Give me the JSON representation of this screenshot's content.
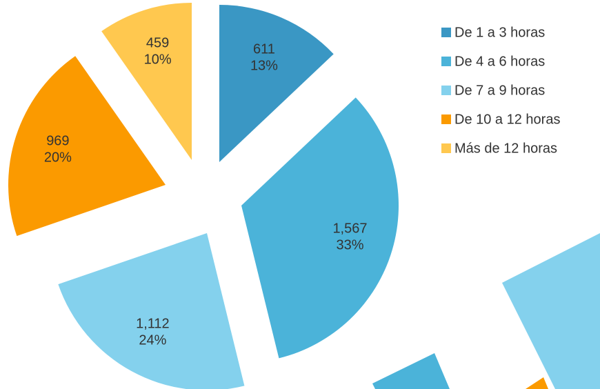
{
  "chart_data": {
    "type": "pie",
    "categories": [
      "De 1 a 3 horas",
      "De 4 a 6 horas",
      "De 7 a 9 horas",
      "De 10 a 12 horas",
      "Más de 12 horas"
    ],
    "values": [
      611,
      1567,
      1112,
      969,
      459
    ],
    "value_labels": [
      "611",
      "1,567",
      "1,112",
      "969",
      "459"
    ],
    "percentages": [
      13,
      33,
      24,
      20,
      10
    ],
    "percentage_labels": [
      "13%",
      "33%",
      "24%",
      "20%",
      "10%"
    ],
    "colors": [
      "#3a97c4",
      "#4bb3d9",
      "#84d1ed",
      "#fb9a00",
      "#ffc84f"
    ],
    "legend": "right"
  }
}
